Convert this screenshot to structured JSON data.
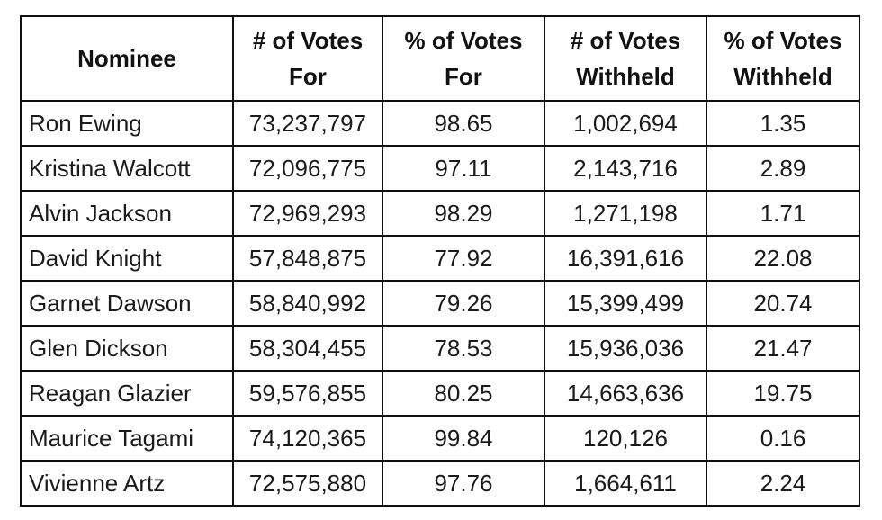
{
  "table": {
    "headers": [
      {
        "line1": "Nominee",
        "line2": ""
      },
      {
        "line1": "# of Votes",
        "line2": "For"
      },
      {
        "line1": "% of Votes",
        "line2": "For"
      },
      {
        "line1": "# of Votes",
        "line2": "Withheld"
      },
      {
        "line1": "% of Votes",
        "line2": "Withheld"
      }
    ],
    "rows": [
      {
        "nominee": "Ron Ewing",
        "votes_for": "73,237,797",
        "pct_for": "98.65",
        "votes_withheld": "1,002,694",
        "pct_withheld": "1.35"
      },
      {
        "nominee": "Kristina Walcott",
        "votes_for": "72,096,775",
        "pct_for": "97.11",
        "votes_withheld": "2,143,716",
        "pct_withheld": "2.89"
      },
      {
        "nominee": "Alvin Jackson",
        "votes_for": "72,969,293",
        "pct_for": "98.29",
        "votes_withheld": "1,271,198",
        "pct_withheld": "1.71"
      },
      {
        "nominee": "David Knight",
        "votes_for": "57,848,875",
        "pct_for": "77.92",
        "votes_withheld": "16,391,616",
        "pct_withheld": "22.08"
      },
      {
        "nominee": "Garnet Dawson",
        "votes_for": "58,840,992",
        "pct_for": "79.26",
        "votes_withheld": "15,399,499",
        "pct_withheld": "20.74"
      },
      {
        "nominee": "Glen Dickson",
        "votes_for": "58,304,455",
        "pct_for": "78.53",
        "votes_withheld": "15,936,036",
        "pct_withheld": "21.47"
      },
      {
        "nominee": "Reagan Glazier",
        "votes_for": "59,576,855",
        "pct_for": "80.25",
        "votes_withheld": "14,663,636",
        "pct_withheld": "19.75"
      },
      {
        "nominee": "Maurice Tagami",
        "votes_for": "74,120,365",
        "pct_for": "99.84",
        "votes_withheld": "120,126",
        "pct_withheld": "0.16"
      },
      {
        "nominee": "Vivienne Artz",
        "votes_for": "72,575,880",
        "pct_for": "97.76",
        "votes_withheld": "1,664,611",
        "pct_withheld": "2.24"
      }
    ]
  }
}
